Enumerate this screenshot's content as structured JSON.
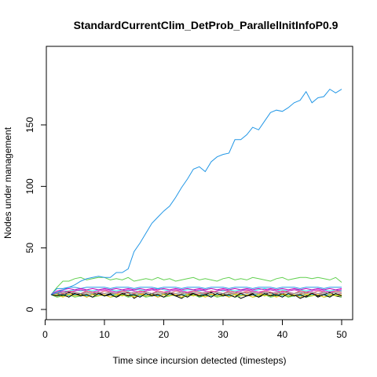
{
  "chart_data": {
    "type": "line",
    "title": "StandardCurrentClim_DetProb_ParallelInitInfoP0.9",
    "xlabel": "Time since incursion detected (timesteps)",
    "ylabel": "Nodes under management",
    "xlim": [
      1,
      50
    ],
    "ylim": [
      0,
      180
    ],
    "x_ticks": [
      0,
      10,
      20,
      30,
      40,
      50
    ],
    "y_ticks": [
      0,
      50,
      100,
      150
    ],
    "grid": false,
    "legend": "none",
    "x": [
      1,
      2,
      3,
      4,
      5,
      6,
      7,
      8,
      9,
      10,
      11,
      12,
      13,
      14,
      15,
      16,
      17,
      18,
      19,
      20,
      21,
      22,
      23,
      24,
      25,
      26,
      27,
      28,
      29,
      30,
      31,
      32,
      33,
      34,
      35,
      36,
      37,
      38,
      39,
      40,
      41,
      42,
      43,
      44,
      45,
      46,
      47,
      48,
      49,
      50
    ],
    "series": [
      {
        "color": "#2297e6",
        "values": [
          12,
          14,
          16,
          18,
          20,
          23,
          25,
          26,
          27,
          26,
          26,
          30,
          30,
          33,
          47,
          54,
          62,
          70,
          75,
          80,
          84,
          91,
          99,
          106,
          114,
          116,
          112,
          120,
          124,
          126,
          127,
          138,
          138,
          142,
          148,
          146,
          153,
          160,
          162,
          161,
          164,
          168,
          170,
          177,
          168,
          172,
          173,
          179,
          176,
          179
        ]
      },
      {
        "color": "#61d04f",
        "values": [
          12,
          18,
          23,
          23,
          25,
          26,
          24,
          25,
          26,
          26,
          24,
          25,
          24,
          26,
          23,
          24,
          25,
          24,
          26,
          24,
          25,
          23,
          24,
          25,
          26,
          24,
          25,
          24,
          23,
          25,
          26,
          24,
          25,
          24,
          26,
          25,
          24,
          23,
          25,
          26,
          24,
          25,
          26,
          26,
          25,
          26,
          25,
          24,
          26,
          22
        ]
      },
      {
        "color": "#df536b",
        "values": [
          12,
          13,
          12,
          14,
          13,
          12,
          14,
          13,
          12,
          13,
          14,
          12,
          13,
          14,
          13,
          12,
          14,
          13,
          12,
          13,
          14,
          12,
          13,
          14,
          13,
          12,
          14,
          13,
          12,
          13,
          14,
          12,
          13,
          14,
          13,
          12,
          14,
          13,
          12,
          13,
          14,
          12,
          13,
          14,
          13,
          12,
          14,
          13,
          12,
          13
        ]
      },
      {
        "color": "#28e2e5",
        "values": [
          12,
          14,
          15,
          15,
          16,
          15,
          16,
          15,
          16,
          17,
          16,
          15,
          16,
          15,
          16,
          16,
          15,
          16,
          17,
          16,
          15,
          16,
          15,
          16,
          16,
          15,
          16,
          17,
          16,
          15,
          16,
          15,
          16,
          16,
          15,
          16,
          17,
          16,
          15,
          16,
          15,
          16,
          16,
          15,
          16,
          17,
          16,
          15,
          16,
          15
        ]
      },
      {
        "color": "#cd0bbc",
        "values": [
          12,
          13,
          15,
          14,
          15,
          16,
          15,
          14,
          15,
          16,
          15,
          14,
          15,
          16,
          15,
          14,
          15,
          16,
          15,
          14,
          15,
          16,
          15,
          14,
          15,
          16,
          15,
          14,
          15,
          16,
          15,
          14,
          15,
          16,
          15,
          14,
          15,
          16,
          15,
          14,
          15,
          16,
          15,
          14,
          15,
          16,
          15,
          14,
          15,
          16
        ]
      },
      {
        "color": "#f5c710",
        "values": [
          12,
          11,
          12,
          13,
          12,
          11,
          12,
          13,
          12,
          11,
          12,
          13,
          12,
          11,
          12,
          13,
          12,
          11,
          12,
          13,
          12,
          11,
          12,
          13,
          12,
          11,
          12,
          13,
          12,
          11,
          12,
          13,
          12,
          11,
          12,
          13,
          12,
          11,
          12,
          13,
          12,
          11,
          12,
          13,
          12,
          11,
          12,
          13,
          12,
          11
        ]
      },
      {
        "color": "#9e9e9e",
        "values": [
          12,
          12,
          13,
          12,
          11,
          12,
          13,
          12,
          11,
          12,
          13,
          12,
          11,
          12,
          13,
          12,
          11,
          12,
          13,
          12,
          11,
          12,
          13,
          12,
          11,
          12,
          13,
          12,
          11,
          12,
          13,
          12,
          11,
          12,
          13,
          12,
          11,
          12,
          13,
          12,
          11,
          12,
          13,
          12,
          11,
          12,
          13,
          12,
          11,
          12
        ]
      },
      {
        "color": "#000000",
        "values": [
          12,
          13,
          11,
          14,
          12,
          13,
          10,
          12,
          14,
          11,
          13,
          10,
          12,
          14,
          9,
          12,
          11,
          13,
          10,
          12,
          14,
          11,
          9,
          12,
          13,
          10,
          12,
          14,
          11,
          13,
          10,
          12,
          9,
          11,
          13,
          10,
          12,
          14,
          11,
          13,
          10,
          12,
          9,
          11,
          13,
          10,
          12,
          14,
          11,
          10
        ]
      },
      {
        "color": "#2297e6",
        "values": [
          12,
          17,
          17,
          18,
          18,
          17,
          18,
          18,
          18,
          18,
          17,
          18,
          18,
          18,
          17,
          18,
          18,
          18,
          17,
          18,
          18,
          18,
          17,
          18,
          18,
          18,
          17,
          18,
          18,
          18,
          17,
          18,
          18,
          18,
          17,
          18,
          18,
          18,
          17,
          18,
          18,
          18,
          17,
          18,
          18,
          18,
          17,
          18,
          18,
          18
        ]
      },
      {
        "color": "#61d04f",
        "values": [
          12,
          10,
          11,
          12,
          10,
          11,
          12,
          10,
          11,
          12,
          10,
          11,
          12,
          10,
          11,
          12,
          10,
          11,
          12,
          10,
          11,
          12,
          10,
          11,
          12,
          10,
          11,
          12,
          10,
          11,
          12,
          10,
          11,
          12,
          10,
          11,
          12,
          10,
          11,
          12,
          10,
          11,
          12,
          10,
          11,
          12,
          10,
          11,
          12,
          10
        ]
      },
      {
        "color": "#df536b",
        "values": [
          12,
          14,
          13,
          15,
          14,
          13,
          15,
          14,
          13,
          15,
          14,
          13,
          15,
          14,
          13,
          15,
          14,
          13,
          15,
          14,
          13,
          15,
          14,
          13,
          15,
          14,
          13,
          15,
          14,
          13,
          15,
          14,
          13,
          15,
          14,
          13,
          15,
          14,
          13,
          15,
          14,
          13,
          15,
          14,
          13,
          15,
          14,
          13,
          15,
          14
        ]
      },
      {
        "color": "#28e2e5",
        "values": [
          12,
          12,
          12,
          11,
          12,
          12,
          11,
          12,
          12,
          11,
          12,
          12,
          11,
          12,
          12,
          11,
          12,
          12,
          11,
          12,
          12,
          11,
          12,
          12,
          11,
          12,
          12,
          11,
          12,
          12,
          11,
          12,
          12,
          11,
          12,
          12,
          11,
          12,
          12,
          11,
          12,
          12,
          11,
          12,
          12,
          11,
          12,
          12,
          11,
          12
        ]
      },
      {
        "color": "#cd0bbc",
        "values": [
          12,
          15,
          16,
          17,
          16,
          17,
          16,
          17,
          16,
          17,
          16,
          17,
          16,
          17,
          16,
          17,
          16,
          17,
          16,
          17,
          16,
          17,
          16,
          17,
          16,
          17,
          16,
          17,
          16,
          17,
          16,
          17,
          16,
          17,
          16,
          17,
          16,
          17,
          16,
          17,
          16,
          17,
          16,
          17,
          16,
          17,
          16,
          17,
          16,
          17
        ]
      },
      {
        "color": "#f5c710",
        "values": [
          12,
          12,
          10,
          12,
          11,
          12,
          10,
          12,
          11,
          12,
          10,
          12,
          11,
          12,
          10,
          12,
          11,
          12,
          10,
          12,
          11,
          12,
          10,
          12,
          11,
          12,
          10,
          12,
          11,
          12,
          10,
          12,
          11,
          12,
          10,
          12,
          11,
          12,
          10,
          12,
          11,
          12,
          10,
          12,
          11,
          12,
          10,
          12,
          11,
          12
        ]
      },
      {
        "color": "#9e9e9e",
        "values": [
          12,
          13,
          14,
          13,
          14,
          13,
          14,
          13,
          14,
          13,
          14,
          13,
          14,
          13,
          14,
          13,
          14,
          13,
          14,
          13,
          14,
          13,
          14,
          13,
          14,
          13,
          14,
          13,
          14,
          13,
          14,
          13,
          14,
          13,
          14,
          13,
          14,
          13,
          14,
          13,
          14,
          13,
          14,
          13,
          14,
          13,
          14,
          13,
          14,
          13
        ]
      },
      {
        "color": "#000000",
        "values": [
          12,
          11,
          12,
          10,
          13,
          11,
          12,
          10,
          13,
          11,
          12,
          10,
          13,
          11,
          12,
          10,
          13,
          11,
          12,
          10,
          13,
          11,
          12,
          10,
          13,
          11,
          12,
          10,
          13,
          11,
          12,
          10,
          13,
          11,
          12,
          10,
          13,
          11,
          12,
          10,
          13,
          11,
          12,
          10,
          13,
          11,
          12,
          10,
          13,
          11
        ]
      }
    ]
  }
}
